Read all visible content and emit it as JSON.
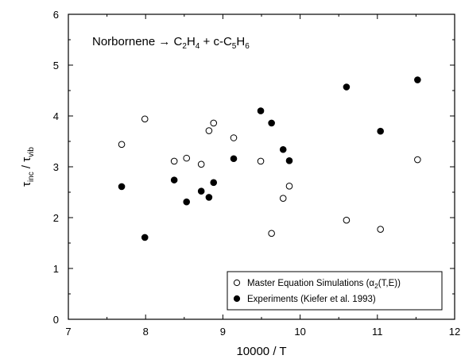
{
  "chart_data": {
    "type": "scatter",
    "title": {
      "prefix": "Norbornene → C",
      "sub1": "2",
      "mid1": "H",
      "sub2": "4",
      "mid2": " + c-C",
      "sub3": "5",
      "mid3": "H",
      "sub4": "6"
    },
    "xlabel": "10000 / T",
    "ylabel": {
      "tau1": "τ",
      "sub1": "inc",
      "slash": " / ",
      "tau2": "τ",
      "sub2": "vib"
    },
    "xlim": [
      7,
      12
    ],
    "ylim": [
      0,
      6
    ],
    "xticks": [
      "7",
      "8",
      "9",
      "10",
      "11",
      "12"
    ],
    "yticks": [
      "0",
      "1",
      "2",
      "3",
      "4",
      "5",
      "6"
    ],
    "grid": false,
    "legend_position": "bottom-right",
    "series": [
      {
        "name": "Master Equation Simulations (α2(T,E))",
        "legend_text": {
          "prefix": "Master Equation Simulations (α",
          "sub": "2",
          "suffix": "(T,E))"
        },
        "marker": "open-circle",
        "x": [
          7.69,
          7.99,
          8.37,
          8.53,
          8.72,
          8.82,
          8.88,
          9.14,
          9.49,
          9.63,
          9.78,
          9.86,
          10.6,
          11.04,
          11.52
        ],
        "y": [
          3.44,
          3.94,
          3.11,
          3.17,
          3.05,
          3.71,
          3.86,
          3.57,
          3.11,
          1.69,
          2.38,
          2.62,
          1.95,
          1.77,
          3.14
        ]
      },
      {
        "name": "Experiments (Kiefer et al. 1993)",
        "legend_text": {
          "prefix": "Experiments (Kiefer et al. 1993)",
          "sub": "",
          "suffix": ""
        },
        "marker": "filled-circle",
        "x": [
          7.69,
          7.99,
          8.37,
          8.53,
          8.72,
          8.82,
          8.88,
          9.14,
          9.49,
          9.63,
          9.78,
          9.86,
          10.6,
          11.04,
          11.52
        ],
        "y": [
          2.61,
          1.61,
          2.74,
          2.31,
          2.52,
          2.4,
          2.69,
          3.16,
          4.1,
          3.86,
          3.34,
          3.12,
          4.57,
          3.7,
          4.71
        ]
      }
    ]
  },
  "colors": {
    "ink": "#000000",
    "background": "#ffffff"
  }
}
